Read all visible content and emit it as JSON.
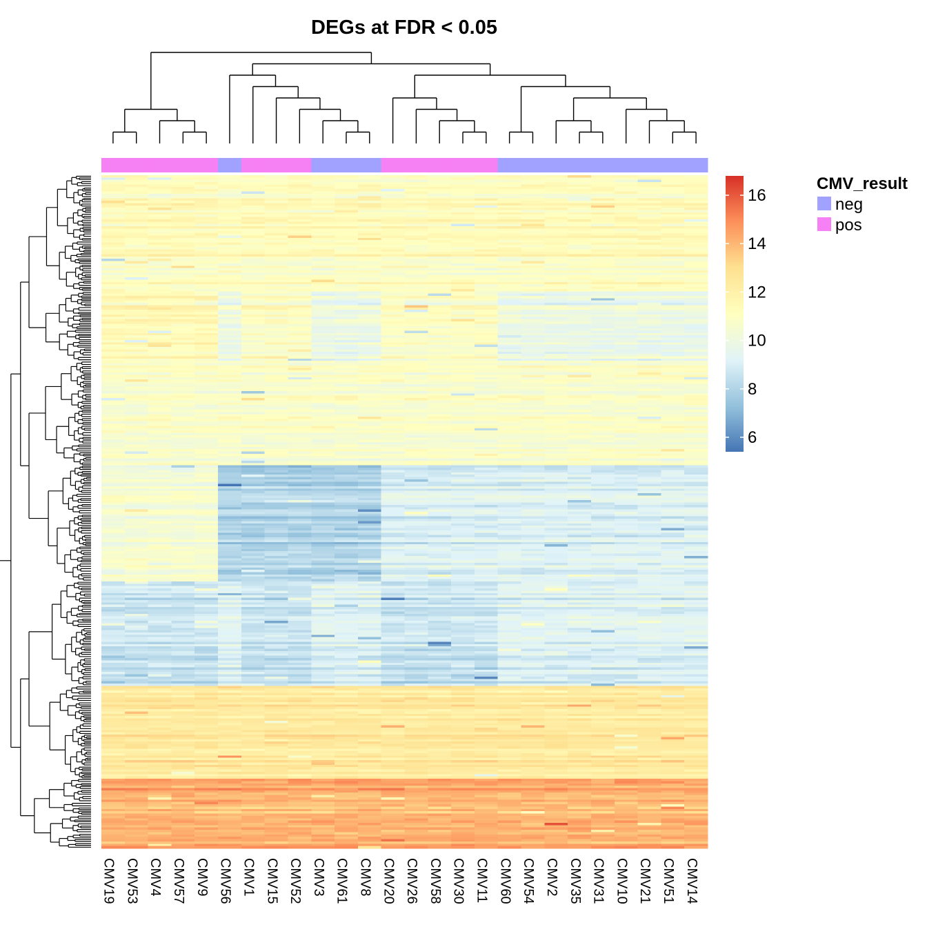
{
  "chart_data": {
    "type": "heatmap",
    "title": "DEGs at FDR < 0.05",
    "columns": [
      "CMV19",
      "CMV53",
      "CMV4",
      "CMV57",
      "CMV9",
      "CMV56",
      "CMV1",
      "CMV15",
      "CMV52",
      "CMV3",
      "CMV61",
      "CMV8",
      "CMV20",
      "CMV26",
      "CMV58",
      "CMV30",
      "CMV11",
      "CMV60",
      "CMV54",
      "CMV2",
      "CMV35",
      "CMV31",
      "CMV10",
      "CMV21",
      "CMV51",
      "CMV14"
    ],
    "column_annotation": {
      "name": "CMV_result",
      "values": [
        "pos",
        "pos",
        "pos",
        "pos",
        "pos",
        "neg",
        "pos",
        "pos",
        "pos",
        "neg",
        "neg",
        "neg",
        "pos",
        "pos",
        "pos",
        "pos",
        "pos",
        "neg",
        "neg",
        "neg",
        "neg",
        "neg",
        "neg",
        "neg",
        "neg",
        "neg"
      ],
      "levels": [
        {
          "label": "neg",
          "color": "#A1A1FF"
        },
        {
          "label": "pos",
          "color": "#F681F4"
        }
      ]
    },
    "color_scale": {
      "min": 5.4,
      "max": 16.8,
      "ticks": [
        "6",
        "8",
        "10",
        "12",
        "14",
        "16"
      ],
      "tick_values": [
        6,
        8,
        10,
        12,
        14,
        16
      ],
      "palette": [
        "#4575B4",
        "#91BFDB",
        "#E0F3F8",
        "#FFFFBF",
        "#FEE090",
        "#FC8D59",
        "#D73027"
      ]
    },
    "row_blocks": [
      {
        "rows": 50,
        "base": 11.2,
        "pattern": "uniform"
      },
      {
        "rows": 30,
        "base": 10.4,
        "pattern": "pos-high"
      },
      {
        "rows": 45,
        "base": 10.8,
        "pattern": "uniform"
      },
      {
        "rows": 50,
        "base": 8.9,
        "pattern": "mid-low"
      },
      {
        "rows": 45,
        "base": 9.0,
        "pattern": "pos-low"
      },
      {
        "rows": 40,
        "base": 12.4,
        "pattern": "uniform"
      },
      {
        "rows": 30,
        "base": 14.0,
        "pattern": "uniform"
      }
    ],
    "legend_placement": "top-right"
  }
}
